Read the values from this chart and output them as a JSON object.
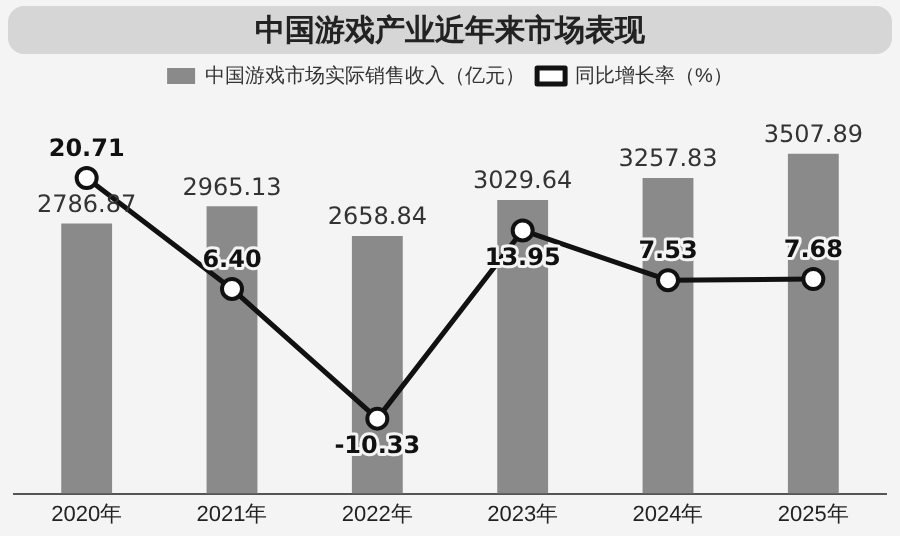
{
  "chart_data": {
    "type": "bar",
    "title": "中国游戏产业近年来市场表现",
    "categories": [
      "2020年",
      "2021年",
      "2022年",
      "2023年",
      "2024年",
      "2025年"
    ],
    "series": [
      {
        "name": "中国游戏市场实际销售收入（亿元）",
        "color": "#8a8a8a",
        "values": [
          2786.87,
          2965.13,
          2658.84,
          3029.64,
          3257.83,
          3507.89
        ],
        "value_labels": [
          "2786.87",
          "2965.13",
          "2658.84",
          "3029.64",
          "3257.83",
          "3507.89"
        ]
      },
      {
        "name": "同比增长率（%）",
        "type": "line",
        "axis": "y2",
        "color": "#111111",
        "values": [
          20.71,
          6.4,
          -10.33,
          13.95,
          7.53,
          7.68
        ],
        "value_labels": [
          "20.71",
          "6.40",
          "-10.33",
          "13.95",
          "7.53",
          "7.68"
        ]
      }
    ],
    "tick_labels": "x",
    "grid": false,
    "legend": "top",
    "marker": "circle",
    "line_style": "solid"
  }
}
